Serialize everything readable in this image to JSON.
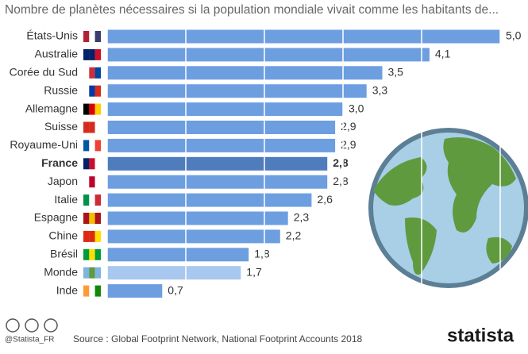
{
  "chart_data": {
    "type": "bar",
    "orientation": "horizontal",
    "title": "Nombre de planètes nécessaires si la population mondiale vivait comme les habitants de...",
    "categories": [
      "États-Unis",
      "Australie",
      "Corée du Sud",
      "Russie",
      "Allemagne",
      "Suisse",
      "Royaume-Uni",
      "France",
      "Japon",
      "Italie",
      "Espagne",
      "Chine",
      "Brésil",
      "Monde",
      "Inde"
    ],
    "values": [
      5.0,
      4.1,
      3.5,
      3.3,
      3.0,
      2.9,
      2.9,
      2.8,
      2.8,
      2.6,
      2.3,
      2.2,
      1.8,
      1.7,
      0.7
    ],
    "value_labels": [
      "5,0",
      "4,1",
      "3,5",
      "3,3",
      "3,0",
      "2,9",
      "2,9",
      "2,8",
      "2,8",
      "2,6",
      "2,3",
      "2,2",
      "1,8",
      "1,7",
      "0,7"
    ],
    "colors": [
      "#6d9ee0",
      "#6d9ee0",
      "#6d9ee0",
      "#6d9ee0",
      "#6d9ee0",
      "#6d9ee0",
      "#6d9ee0",
      "#4e7cbd",
      "#6d9ee0",
      "#6d9ee0",
      "#6d9ee0",
      "#6d9ee0",
      "#6d9ee0",
      "#a9c8ef",
      "#6d9ee0"
    ],
    "label_weights": [
      "normal",
      "normal",
      "normal",
      "normal",
      "normal",
      "normal",
      "normal",
      "bold",
      "normal",
      "normal",
      "normal",
      "normal",
      "normal",
      "normal",
      "normal"
    ],
    "xlim": [
      0,
      5
    ],
    "xticks": [
      0,
      1,
      2,
      3,
      4,
      5
    ],
    "grid": true,
    "credit": "@Statista_FR",
    "source": "Source : Global Footprint Network, National Footprint Accounts 2018",
    "brand": "statista"
  }
}
